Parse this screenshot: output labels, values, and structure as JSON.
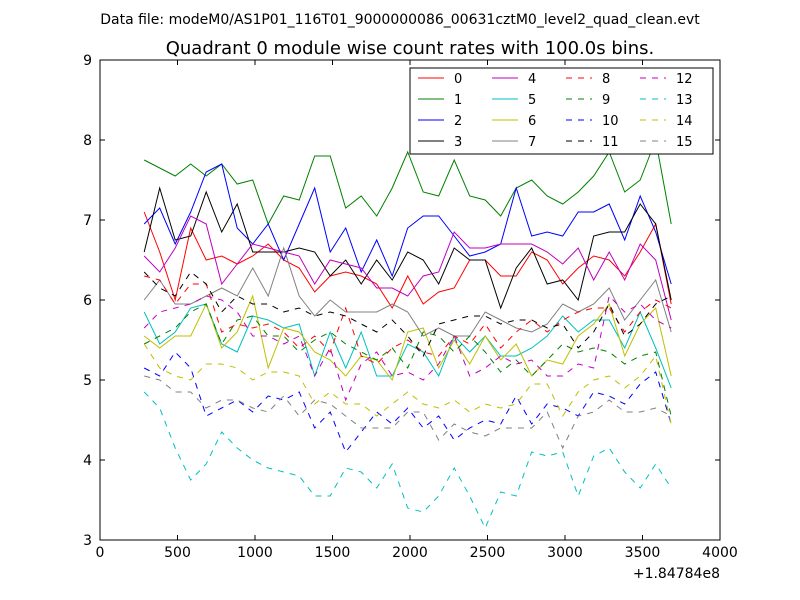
{
  "chart_data": {
    "type": "line",
    "suptitle": "Data file: modeM0/AS1P01_116T01_9000000086_00631cztM0_level2_quad_clean.evt",
    "title": "Quadrant 0 module wise count rates with 100.0s bins.",
    "xlabel": "",
    "ylabel": "",
    "x_offset_label": "+1.84784e8",
    "xlim": [
      0,
      4000
    ],
    "ylim": [
      3,
      9
    ],
    "xticks": [
      0,
      500,
      1000,
      1500,
      2000,
      2500,
      3000,
      3500,
      4000
    ],
    "yticks": [
      3,
      4,
      5,
      6,
      7,
      8,
      9
    ],
    "grid": false,
    "legend_position": "top-right",
    "x": [
      285,
      385,
      485,
      585,
      685,
      785,
      885,
      985,
      1085,
      1185,
      1285,
      1385,
      1485,
      1585,
      1685,
      1785,
      1885,
      1985,
      2085,
      2185,
      2285,
      2385,
      2485,
      2585,
      2685,
      2785,
      2885,
      2985,
      3085,
      3185,
      3285,
      3385,
      3485,
      3585,
      3685
    ],
    "series": [
      {
        "name": "0",
        "color": "#ff0000",
        "dash": "solid",
        "values": [
          7.1,
          6.6,
          6.0,
          6.9,
          6.5,
          6.55,
          6.45,
          6.55,
          6.7,
          6.5,
          6.4,
          6.1,
          6.3,
          6.35,
          6.3,
          6.2,
          5.9,
          6.3,
          5.95,
          6.1,
          6.15,
          6.5,
          6.5,
          6.3,
          6.3,
          6.6,
          6.5,
          6.2,
          6.4,
          6.55,
          6.5,
          6.3,
          6.6,
          6.95,
          5.95
        ]
      },
      {
        "name": "1",
        "color": "#008000",
        "dash": "solid",
        "values": [
          7.75,
          7.65,
          7.55,
          7.7,
          7.55,
          7.7,
          7.45,
          7.5,
          6.95,
          7.3,
          7.25,
          7.8,
          7.8,
          7.15,
          7.3,
          7.05,
          7.4,
          7.85,
          7.35,
          7.3,
          7.75,
          7.3,
          7.25,
          7.05,
          7.4,
          7.5,
          7.3,
          7.2,
          7.35,
          7.55,
          7.85,
          7.35,
          7.5,
          8.0,
          6.95
        ]
      },
      {
        "name": "2",
        "color": "#0000ff",
        "dash": "solid",
        "values": [
          6.95,
          7.15,
          6.7,
          7.1,
          7.6,
          7.7,
          6.9,
          6.7,
          6.95,
          6.5,
          6.95,
          7.4,
          6.6,
          6.9,
          6.35,
          6.75,
          6.3,
          6.9,
          7.05,
          7.05,
          6.8,
          6.55,
          6.6,
          6.7,
          7.4,
          6.8,
          6.85,
          6.8,
          7.1,
          7.1,
          7.2,
          6.75,
          7.3,
          6.85,
          6.2
        ]
      },
      {
        "name": "3",
        "color": "#000000",
        "dash": "solid",
        "values": [
          6.6,
          7.4,
          6.75,
          6.8,
          7.35,
          6.85,
          7.2,
          6.6,
          6.6,
          6.6,
          6.65,
          6.6,
          6.3,
          6.5,
          6.2,
          6.5,
          6.25,
          6.6,
          6.5,
          6.2,
          6.65,
          6.5,
          6.5,
          5.9,
          6.4,
          6.65,
          6.2,
          6.25,
          6.0,
          6.8,
          6.85,
          6.85,
          7.2,
          6.95,
          6.0
        ]
      },
      {
        "name": "4",
        "color": "#bf00bf",
        "dash": "solid",
        "values": [
          6.55,
          6.35,
          6.65,
          7.05,
          6.95,
          6.2,
          6.45,
          6.7,
          6.65,
          6.6,
          6.55,
          6.2,
          6.5,
          6.45,
          6.4,
          6.15,
          6.15,
          6.05,
          6.3,
          6.35,
          6.85,
          6.65,
          6.65,
          6.7,
          6.7,
          6.7,
          6.6,
          6.45,
          6.65,
          6.25,
          6.6,
          6.25,
          6.7,
          6.5,
          5.75
        ]
      },
      {
        "name": "5",
        "color": "#00bfbf",
        "dash": "solid",
        "values": [
          5.85,
          5.45,
          5.6,
          5.9,
          5.95,
          5.45,
          5.35,
          5.8,
          5.75,
          5.65,
          5.7,
          5.05,
          5.6,
          5.15,
          5.6,
          5.05,
          5.05,
          5.45,
          5.35,
          5.05,
          5.55,
          5.35,
          5.55,
          5.3,
          5.3,
          5.4,
          5.55,
          5.8,
          5.6,
          5.75,
          5.75,
          5.4,
          5.85,
          5.4,
          4.9
        ]
      },
      {
        "name": "6",
        "color": "#bfbf00",
        "dash": "solid",
        "values": [
          5.55,
          5.4,
          5.55,
          5.55,
          5.95,
          5.4,
          5.6,
          6.05,
          5.15,
          5.65,
          5.6,
          5.35,
          5.25,
          5.05,
          5.3,
          5.25,
          5.0,
          5.6,
          5.65,
          5.15,
          5.5,
          5.2,
          5.55,
          5.25,
          5.45,
          5.05,
          5.25,
          5.2,
          5.55,
          5.7,
          5.95,
          5.3,
          5.7,
          5.9,
          5.05
        ]
      },
      {
        "name": "7",
        "color": "#808080",
        "dash": "solid",
        "values": [
          6.0,
          6.25,
          5.95,
          5.95,
          6.05,
          6.15,
          6.05,
          6.4,
          6.05,
          6.65,
          6.05,
          5.8,
          6.0,
          5.85,
          5.85,
          5.85,
          5.95,
          5.85,
          5.55,
          5.65,
          5.55,
          5.55,
          5.85,
          5.75,
          5.65,
          5.6,
          5.7,
          5.95,
          5.85,
          5.95,
          6.15,
          5.75,
          6.0,
          6.25,
          5.6
        ]
      },
      {
        "name": "8",
        "color": "#ff0000",
        "dash": "dashed",
        "values": [
          6.3,
          6.25,
          5.95,
          6.2,
          6.2,
          5.6,
          5.7,
          5.65,
          5.7,
          5.6,
          5.4,
          5.55,
          5.35,
          5.9,
          5.3,
          5.2,
          5.4,
          5.5,
          5.35,
          5.3,
          5.55,
          5.45,
          5.7,
          5.4,
          5.6,
          5.75,
          5.6,
          5.75,
          5.85,
          5.9,
          5.9,
          5.6,
          5.85,
          6.0,
          5.9
        ]
      },
      {
        "name": "9",
        "color": "#008000",
        "dash": "dashed",
        "values": [
          5.45,
          5.55,
          5.65,
          5.85,
          5.95,
          5.45,
          5.75,
          5.8,
          5.55,
          5.55,
          5.35,
          5.5,
          5.6,
          5.45,
          5.35,
          5.25,
          5.4,
          5.15,
          5.6,
          5.55,
          5.35,
          5.55,
          5.35,
          5.1,
          5.25,
          5.05,
          5.25,
          5.45,
          5.35,
          5.4,
          5.35,
          5.2,
          5.3,
          5.35,
          4.55
        ]
      },
      {
        "name": "10",
        "color": "#0000ff",
        "dash": "dashed",
        "values": [
          5.15,
          5.05,
          5.35,
          5.15,
          4.55,
          4.65,
          4.75,
          4.6,
          4.8,
          4.75,
          4.85,
          4.4,
          4.6,
          4.1,
          4.35,
          4.6,
          4.45,
          4.65,
          4.4,
          4.55,
          4.25,
          4.4,
          4.5,
          4.45,
          4.8,
          4.45,
          4.7,
          4.65,
          4.55,
          4.85,
          4.8,
          4.7,
          4.95,
          5.1,
          4.45
        ]
      },
      {
        "name": "11",
        "color": "#000000",
        "dash": "dashed",
        "values": [
          6.35,
          6.15,
          6.05,
          6.35,
          6.2,
          5.85,
          6.05,
          5.95,
          5.95,
          5.85,
          5.9,
          5.8,
          5.85,
          5.8,
          5.7,
          5.6,
          5.75,
          5.55,
          5.3,
          5.7,
          5.75,
          5.8,
          5.8,
          5.7,
          5.75,
          5.75,
          5.65,
          5.7,
          5.4,
          5.6,
          5.95,
          5.55,
          5.7,
          5.95,
          6.05
        ]
      },
      {
        "name": "12",
        "color": "#bf00bf",
        "dash": "dashed",
        "values": [
          5.65,
          5.85,
          5.9,
          5.95,
          6.05,
          6.0,
          5.85,
          5.55,
          5.55,
          5.45,
          5.55,
          5.05,
          5.4,
          4.75,
          5.2,
          5.35,
          5.05,
          5.1,
          5.0,
          5.2,
          5.55,
          5.05,
          5.15,
          5.3,
          5.2,
          5.25,
          5.05,
          5.05,
          5.2,
          5.15,
          6.05,
          5.85,
          5.95,
          5.75,
          5.65
        ]
      },
      {
        "name": "13",
        "color": "#00bfbf",
        "dash": "dashed",
        "values": [
          4.85,
          4.65,
          4.15,
          3.75,
          3.95,
          4.35,
          4.15,
          4.0,
          3.9,
          3.85,
          3.8,
          3.55,
          3.55,
          3.9,
          3.85,
          3.65,
          3.95,
          3.4,
          3.35,
          3.55,
          3.9,
          3.55,
          3.15,
          3.6,
          3.55,
          4.1,
          4.05,
          4.1,
          3.55,
          4.05,
          4.15,
          3.85,
          3.65,
          3.95,
          3.65
        ]
      },
      {
        "name": "14",
        "color": "#bfbf00",
        "dash": "dashed",
        "values": [
          5.45,
          5.15,
          5.05,
          5.0,
          5.2,
          5.2,
          5.15,
          5.0,
          5.1,
          5.1,
          5.05,
          4.7,
          4.85,
          4.7,
          4.7,
          4.55,
          4.7,
          4.85,
          4.7,
          4.65,
          4.75,
          4.6,
          4.7,
          4.65,
          4.7,
          4.95,
          4.95,
          4.55,
          4.85,
          5.0,
          5.05,
          4.9,
          5.05,
          5.3,
          4.45
        ]
      },
      {
        "name": "15",
        "color": "#808080",
        "dash": "dashed",
        "values": [
          5.05,
          5.0,
          4.85,
          4.85,
          4.65,
          4.75,
          4.75,
          4.65,
          4.6,
          4.8,
          4.55,
          4.75,
          4.7,
          4.55,
          4.4,
          4.4,
          4.4,
          4.6,
          4.6,
          4.25,
          4.45,
          4.35,
          4.3,
          4.4,
          4.4,
          4.4,
          4.6,
          4.15,
          4.55,
          4.6,
          4.75,
          4.6,
          4.6,
          4.65,
          4.55
        ]
      }
    ]
  }
}
